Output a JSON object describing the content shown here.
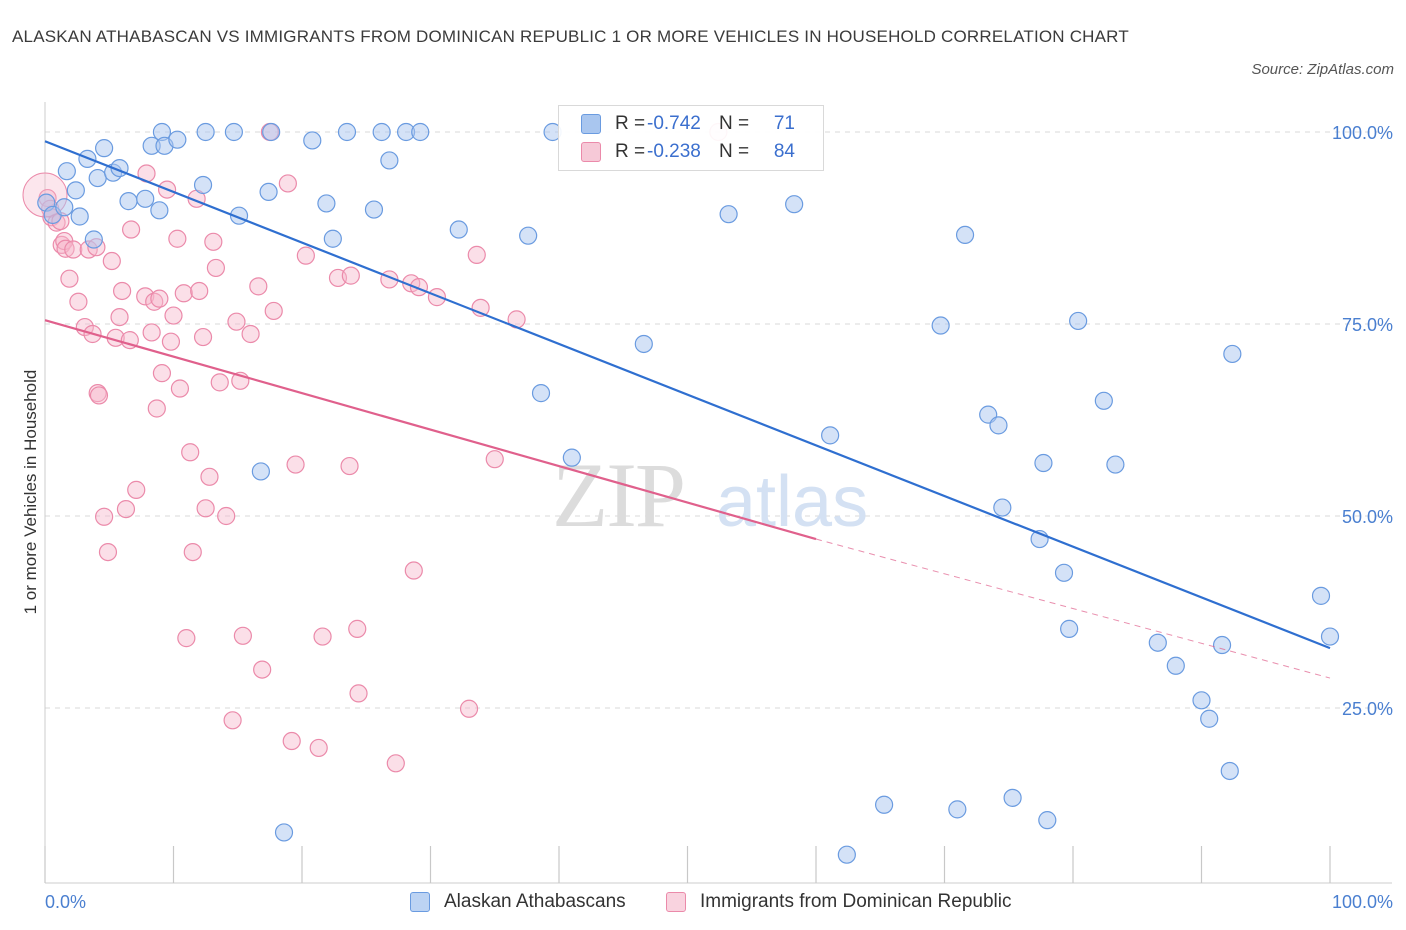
{
  "title": "ALASKAN ATHABASCAN VS IMMIGRANTS FROM DOMINICAN REPUBLIC 1 OR MORE VEHICLES IN HOUSEHOLD CORRELATION CHART",
  "source": "Source: ZipAtlas.com",
  "watermark": {
    "zip": "ZIP",
    "atlas": "atlas"
  },
  "legend": {
    "rows": [
      {
        "r_label": "R =",
        "r_value": "-0.742",
        "n_label": "N =",
        "n_value": "71"
      },
      {
        "r_label": "R =",
        "r_value": "-0.238",
        "n_label": "N =",
        "n_value": "84"
      }
    ]
  },
  "bottom_legend": {
    "series1": "Alaskan Athabascans",
    "series2": "Immigrants from Dominican Republic"
  },
  "colors": {
    "blue_fill": "#a9c6ef",
    "blue_stroke": "#6a9be0",
    "blue_line": "#2f6fd0",
    "pink_fill": "#f6b8cb",
    "pink_stroke": "#eb8aaa",
    "pink_line": "#e0608c",
    "grid": "#d9d9d9",
    "tick_text": "#4a7fd0"
  },
  "chart_data": {
    "type": "scatter",
    "title": "ALASKAN ATHABASCAN VS IMMIGRANTS FROM DOMINICAN REPUBLIC 1 OR MORE VEHICLES IN HOUSEHOLD CORRELATION CHART",
    "xlabel": "",
    "ylabel": "1 or more Vehicles in Household",
    "xlim": [
      0,
      100
    ],
    "ylim": [
      0,
      104
    ],
    "x_tick_labels": [
      "0.0%",
      "100.0%"
    ],
    "y_ticks": [
      25,
      50,
      75,
      100
    ],
    "y_tick_labels": [
      "25.0%",
      "50.0%",
      "75.0%",
      "100.0%"
    ],
    "grid": true,
    "legend_position": "top-center",
    "series": [
      {
        "name": "Alaskan Athabascans",
        "r": -0.742,
        "n": 71,
        "trend": {
          "x": [
            0,
            100
          ],
          "y": [
            98.8,
            32.8
          ]
        },
        "points": [
          [
            0.1,
            90.8
          ],
          [
            0.6,
            89.2
          ],
          [
            1.5,
            90.2
          ],
          [
            1.7,
            94.9
          ],
          [
            2.4,
            92.4
          ],
          [
            2.7,
            89.0
          ],
          [
            3.3,
            96.5
          ],
          [
            3.8,
            86.0
          ],
          [
            4.1,
            94.0
          ],
          [
            4.6,
            97.9
          ],
          [
            5.3,
            94.7
          ],
          [
            5.8,
            95.3
          ],
          [
            6.5,
            91.0
          ],
          [
            7.8,
            91.3
          ],
          [
            8.3,
            98.2
          ],
          [
            8.9,
            89.8
          ],
          [
            9.1,
            100
          ],
          [
            9.3,
            98.2
          ],
          [
            10.3,
            99.0
          ],
          [
            12.3,
            93.1
          ],
          [
            12.5,
            100
          ],
          [
            14.7,
            100
          ],
          [
            15.1,
            89.1
          ],
          [
            16.8,
            55.8
          ],
          [
            17.4,
            92.2
          ],
          [
            17.6,
            100
          ],
          [
            18.6,
            8.8
          ],
          [
            20.8,
            98.9
          ],
          [
            21.9,
            90.7
          ],
          [
            22.4,
            86.1
          ],
          [
            23.5,
            100
          ],
          [
            25.6,
            89.9
          ],
          [
            26.2,
            100
          ],
          [
            26.8,
            96.3
          ],
          [
            28.1,
            100
          ],
          [
            29.2,
            100
          ],
          [
            32.2,
            87.3
          ],
          [
            37.6,
            86.5
          ],
          [
            38.6,
            66.0
          ],
          [
            39.5,
            100
          ],
          [
            41.0,
            57.6
          ],
          [
            46.6,
            72.4
          ],
          [
            53.2,
            89.3
          ],
          [
            58.3,
            90.6
          ],
          [
            61.1,
            60.5
          ],
          [
            62.4,
            5.9
          ],
          [
            65.3,
            12.4
          ],
          [
            69.7,
            74.8
          ],
          [
            71.0,
            11.8
          ],
          [
            71.6,
            86.6
          ],
          [
            73.4,
            63.2
          ],
          [
            74.2,
            61.8
          ],
          [
            74.5,
            51.1
          ],
          [
            75.3,
            13.3
          ],
          [
            77.4,
            47.0
          ],
          [
            77.7,
            56.9
          ],
          [
            78.0,
            10.4
          ],
          [
            79.3,
            42.6
          ],
          [
            79.7,
            35.3
          ],
          [
            80.4,
            75.4
          ],
          [
            82.4,
            65.0
          ],
          [
            83.3,
            56.7
          ],
          [
            86.6,
            33.5
          ],
          [
            88.0,
            30.5
          ],
          [
            90.0,
            26.0
          ],
          [
            90.6,
            23.6
          ],
          [
            91.6,
            33.2
          ],
          [
            92.2,
            16.8
          ],
          [
            92.4,
            71.1
          ],
          [
            99.3,
            39.6
          ],
          [
            100.0,
            34.3
          ]
        ]
      },
      {
        "name": "Immigrants from Dominican Republic",
        "r": -0.238,
        "n": 84,
        "trend": {
          "x": [
            0,
            60
          ],
          "y": [
            75.5,
            47.0
          ]
        },
        "trend_dashed": {
          "x": [
            60,
            100
          ],
          "y": [
            47.0,
            28.9
          ]
        },
        "points": [
          [
            0.2,
            91.4
          ],
          [
            0.4,
            90.0
          ],
          [
            0.5,
            88.9
          ],
          [
            0.9,
            88.2
          ],
          [
            1.2,
            88.4
          ],
          [
            1.3,
            85.3
          ],
          [
            1.5,
            85.8
          ],
          [
            1.6,
            84.8
          ],
          [
            1.9,
            80.9
          ],
          [
            2.2,
            84.7
          ],
          [
            2.6,
            77.9
          ],
          [
            3.1,
            74.6
          ],
          [
            3.4,
            84.7
          ],
          [
            3.7,
            73.7
          ],
          [
            4.0,
            85.0
          ],
          [
            4.1,
            66.0
          ],
          [
            4.2,
            65.7
          ],
          [
            4.6,
            49.9
          ],
          [
            4.9,
            45.3
          ],
          [
            5.2,
            83.2
          ],
          [
            5.5,
            73.2
          ],
          [
            5.8,
            75.9
          ],
          [
            6.0,
            79.3
          ],
          [
            6.3,
            50.9
          ],
          [
            6.6,
            72.9
          ],
          [
            6.7,
            87.3
          ],
          [
            7.1,
            53.4
          ],
          [
            7.8,
            78.6
          ],
          [
            7.9,
            94.6
          ],
          [
            8.3,
            73.9
          ],
          [
            8.5,
            77.9
          ],
          [
            8.7,
            64.0
          ],
          [
            8.9,
            78.3
          ],
          [
            9.1,
            68.6
          ],
          [
            9.5,
            92.5
          ],
          [
            9.8,
            72.7
          ],
          [
            10.0,
            76.1
          ],
          [
            10.3,
            86.1
          ],
          [
            10.5,
            66.6
          ],
          [
            10.8,
            79.0
          ],
          [
            11.0,
            34.1
          ],
          [
            11.3,
            58.3
          ],
          [
            11.5,
            45.3
          ],
          [
            11.8,
            91.3
          ],
          [
            12.0,
            79.3
          ],
          [
            12.3,
            73.3
          ],
          [
            12.5,
            51.0
          ],
          [
            12.8,
            55.1
          ],
          [
            13.1,
            85.7
          ],
          [
            13.3,
            82.3
          ],
          [
            13.6,
            67.4
          ],
          [
            14.1,
            50.0
          ],
          [
            14.6,
            23.4
          ],
          [
            14.9,
            75.3
          ],
          [
            15.2,
            67.6
          ],
          [
            15.4,
            34.4
          ],
          [
            16.0,
            73.7
          ],
          [
            16.6,
            79.9
          ],
          [
            16.9,
            30.0
          ],
          [
            17.5,
            100
          ],
          [
            17.8,
            76.7
          ],
          [
            18.9,
            93.3
          ],
          [
            19.2,
            20.7
          ],
          [
            19.5,
            56.7
          ],
          [
            20.3,
            83.9
          ],
          [
            21.3,
            19.8
          ],
          [
            21.6,
            34.3
          ],
          [
            22.8,
            81.0
          ],
          [
            23.7,
            56.5
          ],
          [
            23.8,
            81.3
          ],
          [
            24.3,
            35.3
          ],
          [
            24.4,
            26.9
          ],
          [
            26.8,
            80.8
          ],
          [
            27.3,
            17.8
          ],
          [
            28.5,
            80.3
          ],
          [
            28.7,
            42.9
          ],
          [
            29.1,
            79.8
          ],
          [
            30.5,
            78.5
          ],
          [
            33.0,
            24.9
          ],
          [
            33.6,
            84.0
          ],
          [
            33.9,
            77.1
          ],
          [
            35.0,
            57.4
          ],
          [
            36.7,
            75.6
          ],
          [
            52.4,
            100
          ]
        ]
      }
    ]
  }
}
